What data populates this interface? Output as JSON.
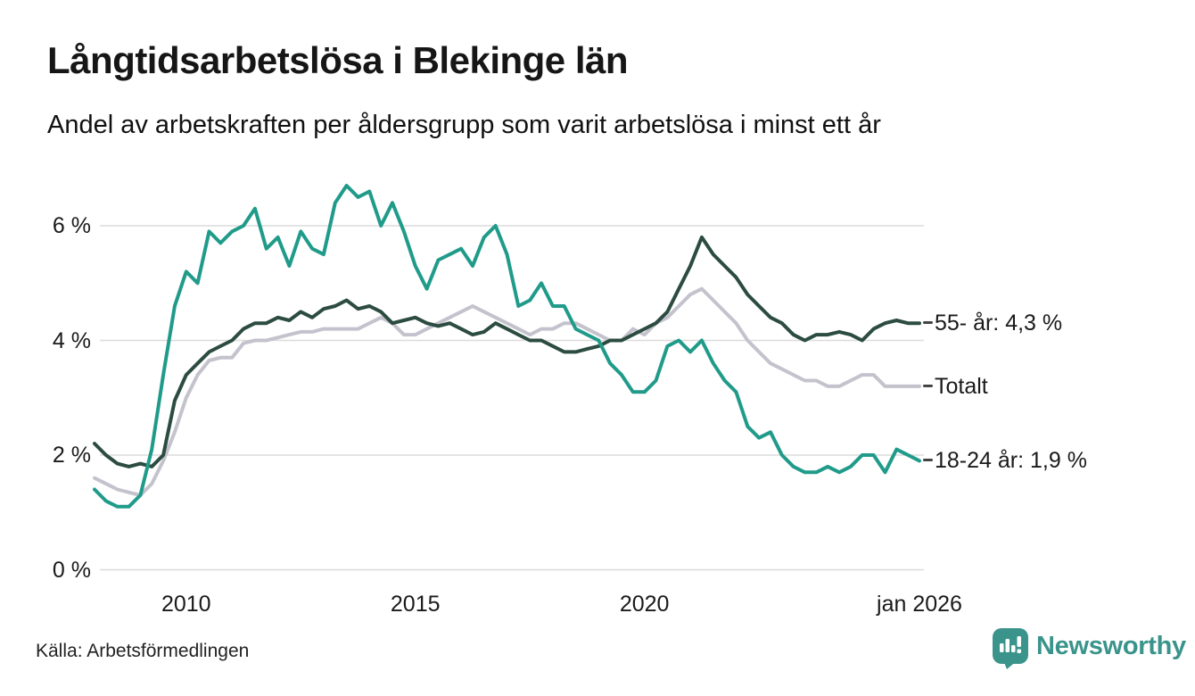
{
  "header": {
    "title": "Långtidsarbetslösa i Blekinge län",
    "subtitle": "Andel av arbetskraften per åldersgrupp som varit arbetslösa i minst ett år"
  },
  "footer": {
    "source": "Källa: Arbetsförmedlingen",
    "brand": "Newsworthy"
  },
  "colors": {
    "teal_line": "#209b8a",
    "dark_green_line": "#2c4c41",
    "gray_line": "#c4c3cd",
    "brand_teal": "#3a948b",
    "grid": "#dcdcdc",
    "text": "#1a1a1a"
  },
  "chart_data": {
    "type": "line",
    "title": "Långtidsarbetslösa i Blekinge län",
    "subtitle": "Andel av arbetskraften per åldersgrupp som varit arbetslösa i minst ett år",
    "xlabel": "",
    "ylabel": "",
    "xlim": [
      2008,
      2026.05
    ],
    "ylim": [
      0,
      6.9
    ],
    "grid": "horizontal",
    "legend_position": "right-end-labels",
    "x_unit": "year (quarterly samples)",
    "y_unit": "percent",
    "x": [
      2008,
      2008.25,
      2008.5,
      2008.75,
      2009,
      2009.25,
      2009.5,
      2009.75,
      2010,
      2010.25,
      2010.5,
      2010.75,
      2011,
      2011.25,
      2011.5,
      2011.75,
      2012,
      2012.25,
      2012.5,
      2012.75,
      2013,
      2013.25,
      2013.5,
      2013.75,
      2014,
      2014.25,
      2014.5,
      2014.75,
      2015,
      2015.25,
      2015.5,
      2015.75,
      2016,
      2016.25,
      2016.5,
      2016.75,
      2017,
      2017.25,
      2017.5,
      2017.75,
      2018,
      2018.25,
      2018.5,
      2018.75,
      2019,
      2019.25,
      2019.5,
      2019.75,
      2020,
      2020.25,
      2020.5,
      2020.75,
      2021,
      2021.25,
      2021.5,
      2021.75,
      2022,
      2022.25,
      2022.5,
      2022.75,
      2023,
      2023.25,
      2023.5,
      2023.75,
      2024,
      2024.25,
      2024.5,
      2024.75,
      2025,
      2025.25,
      2025.5,
      2025.75,
      2026
    ],
    "series": [
      {
        "name": "Totalt",
        "end_label": "Totalt",
        "end_value": 3.2,
        "color": "#c4c3cd",
        "values": [
          1.6,
          1.5,
          1.4,
          1.35,
          1.3,
          1.5,
          1.9,
          2.4,
          3.0,
          3.4,
          3.65,
          3.7,
          3.7,
          3.95,
          4.0,
          4.0,
          4.05,
          4.1,
          4.15,
          4.15,
          4.2,
          4.2,
          4.2,
          4.2,
          4.3,
          4.4,
          4.3,
          4.1,
          4.1,
          4.2,
          4.3,
          4.4,
          4.5,
          4.6,
          4.5,
          4.4,
          4.3,
          4.2,
          4.1,
          4.2,
          4.2,
          4.3,
          4.3,
          4.2,
          4.1,
          4.0,
          4.0,
          4.2,
          4.1,
          4.3,
          4.4,
          4.6,
          4.8,
          4.9,
          4.7,
          4.5,
          4.3,
          4.0,
          3.8,
          3.6,
          3.5,
          3.4,
          3.3,
          3.3,
          3.2,
          3.2,
          3.3,
          3.4,
          3.4,
          3.2,
          3.2,
          3.2,
          3.2
        ]
      },
      {
        "name": "55- år",
        "end_label": "55- år: 4,3 %",
        "end_value": 4.3,
        "color": "#2c4c41",
        "values": [
          2.2,
          2.0,
          1.85,
          1.8,
          1.85,
          1.8,
          2.0,
          2.95,
          3.4,
          3.6,
          3.8,
          3.9,
          4.0,
          4.2,
          4.3,
          4.3,
          4.4,
          4.35,
          4.5,
          4.4,
          4.55,
          4.6,
          4.7,
          4.55,
          4.6,
          4.5,
          4.3,
          4.35,
          4.4,
          4.3,
          4.25,
          4.3,
          4.2,
          4.1,
          4.15,
          4.3,
          4.2,
          4.1,
          4.0,
          4.0,
          3.9,
          3.8,
          3.8,
          3.85,
          3.9,
          4.0,
          4.0,
          4.1,
          4.2,
          4.3,
          4.5,
          4.9,
          5.3,
          5.8,
          5.5,
          5.3,
          5.1,
          4.8,
          4.6,
          4.4,
          4.3,
          4.1,
          4.0,
          4.1,
          4.1,
          4.15,
          4.1,
          4.0,
          4.2,
          4.3,
          4.35,
          4.3,
          4.3
        ]
      },
      {
        "name": "18-24 år",
        "end_label": "18-24 år: 1,9 %",
        "end_value": 1.9,
        "color": "#209b8a",
        "values": [
          1.4,
          1.2,
          1.1,
          1.1,
          1.3,
          2.1,
          3.4,
          4.6,
          5.2,
          5.0,
          5.9,
          5.7,
          5.9,
          6.0,
          6.3,
          5.6,
          5.8,
          5.3,
          5.9,
          5.6,
          5.5,
          6.4,
          6.7,
          6.5,
          6.6,
          6.0,
          6.4,
          5.9,
          5.3,
          4.9,
          5.4,
          5.5,
          5.6,
          5.3,
          5.8,
          6.0,
          5.5,
          4.6,
          4.7,
          5.0,
          4.6,
          4.6,
          4.2,
          4.1,
          4.0,
          3.6,
          3.4,
          3.1,
          3.1,
          3.3,
          3.9,
          4.0,
          3.8,
          4.0,
          3.6,
          3.3,
          3.1,
          2.5,
          2.3,
          2.4,
          2.0,
          1.8,
          1.7,
          1.7,
          1.8,
          1.7,
          1.8,
          2.0,
          2.0,
          1.7,
          2.1,
          2.0,
          1.9
        ]
      }
    ],
    "yticks": [
      {
        "label": "6 %",
        "value": 6
      },
      {
        "label": "4 %",
        "value": 4
      },
      {
        "label": "2 %",
        "value": 2
      },
      {
        "label": "0 %",
        "value": 0
      }
    ],
    "xticks": [
      {
        "label": "2010",
        "year": 2010
      },
      {
        "label": "2015",
        "year": 2015
      },
      {
        "label": "2020",
        "year": 2020
      },
      {
        "label": "jan 2026",
        "year": 2026
      }
    ]
  }
}
